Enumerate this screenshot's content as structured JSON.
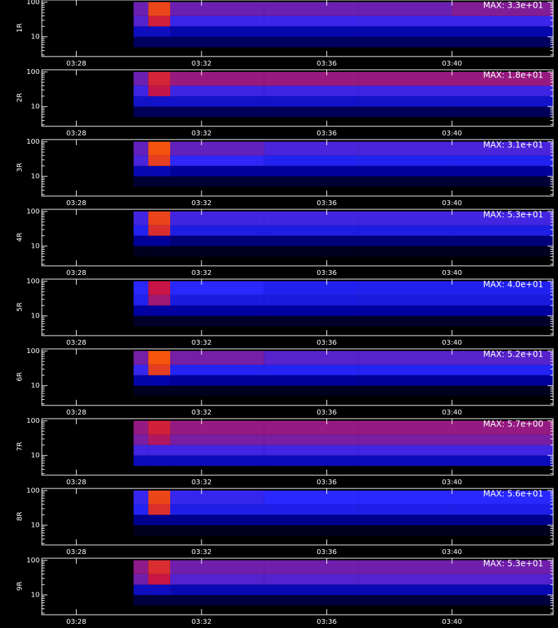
{
  "chart_data": [
    {
      "type": "heatmap",
      "ylabel": "1R",
      "annotation": "MAX: 3.3e+01",
      "zlim": [
        0,
        33
      ],
      "x_edges": [
        29.83,
        30.3,
        31.0,
        34,
        37,
        40,
        43.23
      ],
      "y_edges": [
        5,
        10,
        20,
        40,
        100
      ],
      "values": [
        [
          2,
          2,
          2,
          2,
          2,
          2
        ],
        [
          5,
          5,
          4,
          4,
          4,
          4
        ],
        [
          10,
          16,
          9,
          9,
          9,
          9
        ],
        [
          11,
          20,
          11,
          11,
          11,
          12
        ]
      ],
      "xlim": [
        26.9,
        43.23
      ],
      "xticks": [
        {
          "value": 28,
          "label": "03:28"
        },
        {
          "value": 32,
          "label": "03:32"
        },
        {
          "value": 36,
          "label": "03:36"
        },
        {
          "value": 40,
          "label": "03:40"
        }
      ],
      "ylim": [
        2.7,
        115
      ],
      "yticks": [
        10,
        100
      ],
      "yminorticks": [
        3,
        4,
        5,
        6,
        7,
        8,
        9,
        20,
        30,
        40,
        50,
        60,
        70,
        80,
        90
      ],
      "log_y": true
    },
    {
      "type": "heatmap",
      "ylabel": "2R",
      "annotation": "MAX: 1.8e+01",
      "zlim": [
        0,
        18
      ],
      "x_edges": [
        29.83,
        30.3,
        31.0,
        34,
        37,
        40,
        43.23
      ],
      "y_edges": [
        5,
        10,
        20,
        40,
        100
      ],
      "values": [
        [
          1,
          1,
          1,
          1,
          1,
          1
        ],
        [
          3,
          3,
          3,
          3,
          3,
          3
        ],
        [
          5,
          8,
          5,
          5,
          5,
          5
        ],
        [
          6,
          9,
          7,
          7,
          7,
          7
        ]
      ],
      "xlim": [
        26.9,
        43.23
      ],
      "xticks": [
        {
          "value": 28,
          "label": "03:28"
        },
        {
          "value": 32,
          "label": "03:32"
        },
        {
          "value": 36,
          "label": "03:36"
        },
        {
          "value": 40,
          "label": "03:40"
        }
      ],
      "ylim": [
        2.7,
        115
      ],
      "yticks": [
        10,
        100
      ],
      "yminorticks": [
        3,
        4,
        5,
        6,
        7,
        8,
        9,
        20,
        30,
        40,
        50,
        60,
        70,
        80,
        90
      ],
      "log_y": true
    },
    {
      "type": "heatmap",
      "ylabel": "3R",
      "annotation": "MAX: 3.1e+01",
      "zlim": [
        0,
        31
      ],
      "x_edges": [
        29.83,
        30.3,
        31.0,
        34,
        37,
        40,
        43.23
      ],
      "y_edges": [
        5,
        10,
        20,
        40,
        100
      ],
      "values": [
        [
          1,
          1,
          1,
          1,
          1,
          1
        ],
        [
          4,
          4,
          3,
          3,
          3,
          3
        ],
        [
          9,
          18,
          8,
          7,
          7,
          7
        ],
        [
          10,
          20,
          10,
          9,
          9,
          9
        ]
      ],
      "xlim": [
        26.9,
        43.23
      ],
      "xticks": [
        {
          "value": 28,
          "label": "03:28"
        },
        {
          "value": 32,
          "label": "03:32"
        },
        {
          "value": 36,
          "label": "03:36"
        },
        {
          "value": 40,
          "label": "03:40"
        }
      ],
      "ylim": [
        2.7,
        115
      ],
      "yticks": [
        10,
        100
      ],
      "yminorticks": [
        3,
        4,
        5,
        6,
        7,
        8,
        9,
        20,
        30,
        40,
        50,
        60,
        70,
        80,
        90
      ],
      "log_y": true
    },
    {
      "type": "heatmap",
      "ylabel": "4R",
      "annotation": "MAX: 5.3e+01",
      "zlim": [
        0,
        53
      ],
      "x_edges": [
        29.83,
        30.3,
        31.0,
        34,
        37,
        40,
        43.23
      ],
      "y_edges": [
        5,
        10,
        20,
        40,
        100
      ],
      "values": [
        [
          1,
          1,
          1,
          1,
          1,
          1
        ],
        [
          5,
          5,
          4,
          4,
          4,
          4
        ],
        [
          12,
          28,
          11,
          11,
          11,
          11
        ],
        [
          15,
          32,
          15,
          15,
          15,
          15
        ]
      ],
      "xlim": [
        26.9,
        43.23
      ],
      "xticks": [
        {
          "value": 28,
          "label": "03:28"
        },
        {
          "value": 32,
          "label": "03:32"
        },
        {
          "value": 36,
          "label": "03:36"
        },
        {
          "value": 40,
          "label": "03:40"
        }
      ],
      "ylim": [
        2.7,
        115
      ],
      "yticks": [
        10,
        100
      ],
      "yminorticks": [
        3,
        4,
        5,
        6,
        7,
        8,
        9,
        20,
        30,
        40,
        50,
        60,
        70,
        80,
        90
      ],
      "log_y": true
    },
    {
      "type": "heatmap",
      "ylabel": "5R",
      "annotation": "MAX: 4.0e+01",
      "zlim": [
        0,
        40
      ],
      "x_edges": [
        29.83,
        30.3,
        31.0,
        34,
        37,
        40,
        43.23
      ],
      "y_edges": [
        5,
        10,
        20,
        40,
        100
      ],
      "values": [
        [
          1,
          1,
          1,
          1,
          1,
          1
        ],
        [
          4,
          4,
          4,
          4,
          4,
          4
        ],
        [
          9,
          16,
          8,
          8,
          8,
          8
        ],
        [
          10,
          18,
          10,
          9,
          9,
          9
        ]
      ],
      "xlim": [
        26.9,
        43.23
      ],
      "xticks": [
        {
          "value": 28,
          "label": "03:28"
        },
        {
          "value": 32,
          "label": "03:32"
        },
        {
          "value": 36,
          "label": "03:36"
        },
        {
          "value": 40,
          "label": "03:40"
        }
      ],
      "ylim": [
        2.7,
        115
      ],
      "yticks": [
        10,
        100
      ],
      "yminorticks": [
        3,
        4,
        5,
        6,
        7,
        8,
        9,
        20,
        30,
        40,
        50,
        60,
        70,
        80,
        90
      ],
      "log_y": true
    },
    {
      "type": "heatmap",
      "ylabel": "6R",
      "annotation": "MAX: 5.2e+01",
      "zlim": [
        0,
        52
      ],
      "x_edges": [
        29.83,
        30.3,
        31.0,
        34,
        37,
        40,
        43.23
      ],
      "y_edges": [
        5,
        10,
        20,
        40,
        100
      ],
      "values": [
        [
          1,
          1,
          1,
          1,
          1,
          1
        ],
        [
          6,
          6,
          5,
          5,
          5,
          5
        ],
        [
          14,
          30,
          12,
          12,
          12,
          12
        ],
        [
          18,
          34,
          18,
          16,
          16,
          16
        ]
      ],
      "xlim": [
        26.9,
        43.23
      ],
      "xticks": [
        {
          "value": 28,
          "label": "03:28"
        },
        {
          "value": 32,
          "label": "03:32"
        },
        {
          "value": 36,
          "label": "03:36"
        },
        {
          "value": 40,
          "label": "03:40"
        }
      ],
      "ylim": [
        2.7,
        115
      ],
      "yticks": [
        10,
        100
      ],
      "yminorticks": [
        3,
        4,
        5,
        6,
        7,
        8,
        9,
        20,
        30,
        40,
        50,
        60,
        70,
        80,
        90
      ],
      "log_y": true
    },
    {
      "type": "heatmap",
      "ylabel": "7R",
      "annotation": "MAX: 5.7e+00",
      "zlim": [
        0,
        5.7
      ],
      "x_edges": [
        29.83,
        30.3,
        31.0,
        34,
        37,
        40,
        43.23
      ],
      "y_edges": [
        5,
        10,
        20,
        40,
        100
      ],
      "values": [
        [
          0.8,
          0.8,
          0.8,
          0.8,
          0.8,
          0.8
        ],
        [
          1.6,
          1.6,
          1.6,
          1.6,
          1.6,
          1.6
        ],
        [
          2,
          2.4,
          2,
          2,
          2,
          2
        ],
        [
          2.2,
          2.8,
          2.2,
          2.2,
          2.2,
          2.2
        ]
      ],
      "xlim": [
        26.9,
        43.23
      ],
      "xticks": [
        {
          "value": 28,
          "label": "03:28"
        },
        {
          "value": 32,
          "label": "03:32"
        },
        {
          "value": 36,
          "label": "03:36"
        },
        {
          "value": 40,
          "label": "03:40"
        }
      ],
      "ylim": [
        2.7,
        115
      ],
      "yticks": [
        10,
        100
      ],
      "yminorticks": [
        3,
        4,
        5,
        6,
        7,
        8,
        9,
        20,
        30,
        40,
        50,
        60,
        70,
        80,
        90
      ],
      "log_y": true
    },
    {
      "type": "heatmap",
      "ylabel": "8R",
      "annotation": "MAX: 5.6e+01",
      "zlim": [
        0,
        56
      ],
      "x_edges": [
        29.83,
        30.3,
        31.0,
        34,
        37,
        40,
        43.23
      ],
      "y_edges": [
        5,
        10,
        20,
        40,
        100
      ],
      "values": [
        [
          1,
          1,
          1,
          1,
          1,
          1
        ],
        [
          5,
          5,
          5,
          5,
          5,
          5
        ],
        [
          13,
          30,
          12,
          12,
          12,
          12
        ],
        [
          15,
          34,
          15,
          14,
          14,
          14
        ]
      ],
      "xlim": [
        26.9,
        43.23
      ],
      "xticks": [
        {
          "value": 28,
          "label": "03:28"
        },
        {
          "value": 32,
          "label": "03:32"
        },
        {
          "value": 36,
          "label": "03:36"
        },
        {
          "value": 40,
          "label": "03:40"
        }
      ],
      "ylim": [
        2.7,
        115
      ],
      "yticks": [
        10,
        100
      ],
      "yminorticks": [
        3,
        4,
        5,
        6,
        7,
        8,
        9,
        20,
        30,
        40,
        50,
        60,
        70,
        80,
        90
      ],
      "log_y": true
    },
    {
      "type": "heatmap",
      "ylabel": "9R",
      "annotation": "MAX: 5.3e+01",
      "zlim": [
        0,
        53
      ],
      "x_edges": [
        29.83,
        30.3,
        31.0,
        34,
        37,
        40,
        43.23
      ],
      "y_edges": [
        5,
        10,
        20,
        40,
        100
      ],
      "values": [
        [
          2,
          2,
          2,
          2,
          2,
          2
        ],
        [
          8,
          8,
          7,
          7,
          7,
          7
        ],
        [
          18,
          24,
          16,
          16,
          16,
          16
        ],
        [
          20,
          28,
          18,
          18,
          18,
          18
        ]
      ],
      "xlim": [
        26.9,
        43.23
      ],
      "xticks": [
        {
          "value": 28,
          "label": "03:28"
        },
        {
          "value": 32,
          "label": "03:32"
        },
        {
          "value": 36,
          "label": "03:36"
        },
        {
          "value": 40,
          "label": "03:40"
        }
      ],
      "ylim": [
        2.7,
        115
      ],
      "yticks": [
        10,
        100
      ],
      "yminorticks": [
        3,
        4,
        5,
        6,
        7,
        8,
        9,
        20,
        30,
        40,
        50,
        60,
        70,
        80,
        90
      ],
      "log_y": true
    }
  ]
}
